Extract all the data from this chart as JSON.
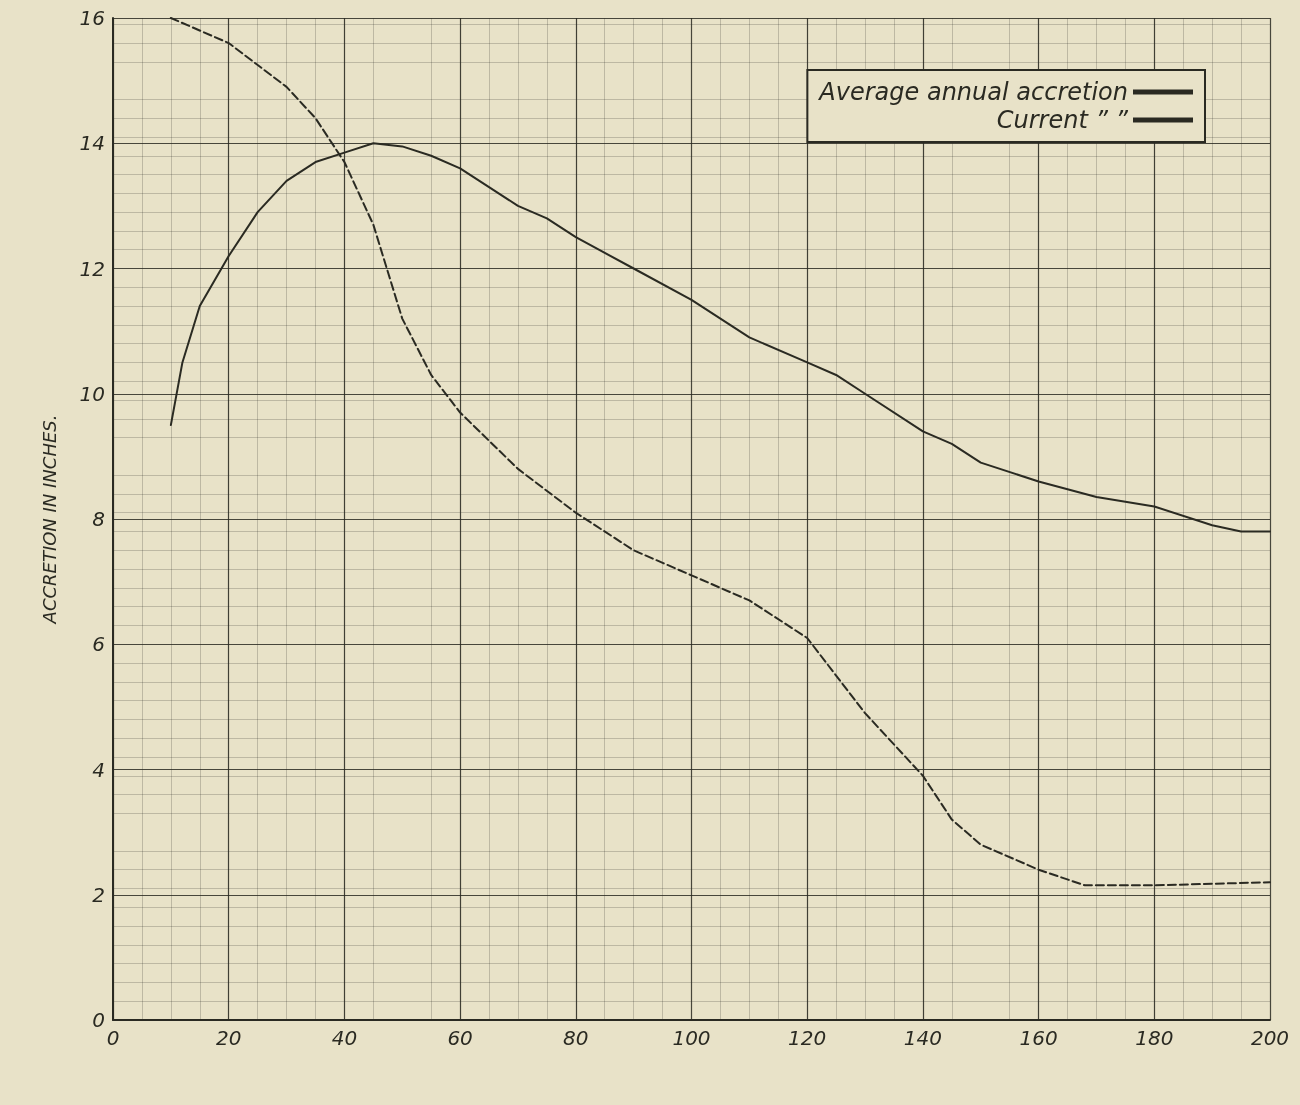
{
  "chart_data": {
    "type": "line",
    "ylabel": "ACCRETION IN INCHES.",
    "xlim": [
      0,
      200
    ],
    "xticks": [
      0,
      20,
      40,
      60,
      80,
      100,
      120,
      140,
      160,
      180,
      200
    ],
    "ylim": [
      0,
      16
    ],
    "yticks": [
      0,
      2,
      4,
      6,
      8,
      10,
      12,
      14,
      16
    ],
    "grid": true,
    "legend": "top right",
    "marker": "none",
    "series": [
      {
        "name": "Average annual accretion",
        "color": "#2a2a22",
        "line_style": "solid",
        "x": [
          10,
          12,
          15,
          20,
          25,
          30,
          35,
          40,
          45,
          50,
          55,
          60,
          65,
          70,
          75,
          80,
          90,
          100,
          110,
          120,
          125,
          130,
          140,
          145,
          150,
          160,
          170,
          180,
          190,
          195,
          200
        ],
        "values": [
          9.5,
          10.5,
          11.4,
          12.2,
          12.9,
          13.4,
          13.7,
          13.85,
          14.0,
          13.95,
          13.8,
          13.6,
          13.3,
          13.0,
          12.8,
          12.5,
          12.0,
          11.5,
          10.9,
          10.5,
          10.3,
          10.0,
          9.4,
          9.2,
          8.9,
          8.6,
          8.35,
          8.2,
          7.9,
          7.8,
          7.8
        ]
      },
      {
        "name": "Current ” ”",
        "color": "#2a2a22",
        "line_style": "dashed",
        "x": [
          10,
          20,
          30,
          35,
          40,
          45,
          50,
          55,
          60,
          70,
          80,
          90,
          100,
          110,
          120,
          125,
          130,
          140,
          145,
          150,
          160,
          168,
          180,
          200
        ],
        "values": [
          16.0,
          15.6,
          14.9,
          14.4,
          13.7,
          12.7,
          11.2,
          10.3,
          9.7,
          8.8,
          8.1,
          7.5,
          7.1,
          6.7,
          6.1,
          5.5,
          4.9,
          3.9,
          3.2,
          2.8,
          2.4,
          2.15,
          2.15,
          2.2
        ]
      }
    ]
  }
}
